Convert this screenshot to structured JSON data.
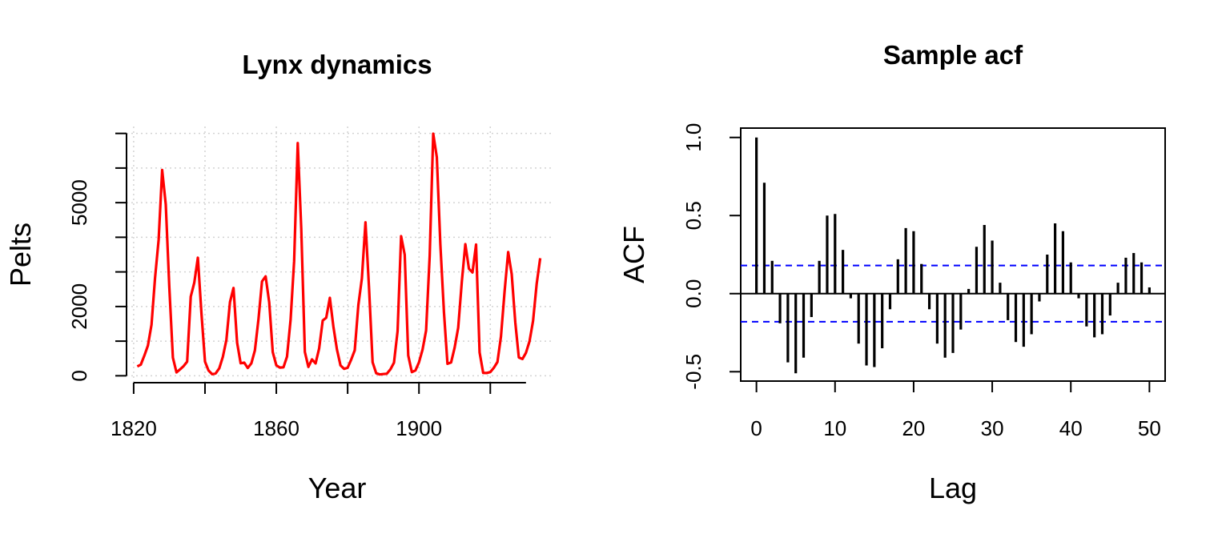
{
  "chart_data": [
    {
      "type": "line",
      "title": "Lynx dynamics",
      "xlabel": "Year",
      "ylabel": "Pelts",
      "xlim": [
        1818,
        1937
      ],
      "ylim": [
        -200,
        7200
      ],
      "xticks": [
        1820,
        1860,
        1900
      ],
      "yticks": [
        0,
        2000,
        5000
      ],
      "grid": true,
      "color": "#ff0000",
      "series": [
        {
          "x": [
            1821,
            1822,
            1823,
            1824,
            1825,
            1826,
            1827,
            1828,
            1829,
            1830,
            1831,
            1832,
            1833,
            1834,
            1835,
            1836,
            1837,
            1838,
            1839,
            1840,
            1841,
            1842,
            1843,
            1844,
            1845,
            1846,
            1847,
            1848,
            1849,
            1850,
            1851,
            1852,
            1853,
            1854,
            1855,
            1856,
            1857,
            1858,
            1859,
            1860,
            1861,
            1862,
            1863,
            1864,
            1865,
            1866,
            1867,
            1868,
            1869,
            1870,
            1871,
            1872,
            1873,
            1874,
            1875,
            1876,
            1877,
            1878,
            1879,
            1880,
            1881,
            1882,
            1883,
            1884,
            1885,
            1886,
            1887,
            1888,
            1889,
            1890,
            1891,
            1892,
            1893,
            1894,
            1895,
            1896,
            1897,
            1898,
            1899,
            1900,
            1901,
            1902,
            1903,
            1904,
            1905,
            1906,
            1907,
            1908,
            1909,
            1910,
            1911,
            1912,
            1913,
            1914,
            1915,
            1916,
            1917,
            1918,
            1919,
            1920,
            1921,
            1922,
            1923,
            1924,
            1925,
            1926,
            1927,
            1928,
            1929,
            1930,
            1931,
            1932,
            1933,
            1934
          ],
          "values": [
            269,
            321,
            585,
            871,
            1475,
            2821,
            3928,
            5943,
            4950,
            2577,
            523,
            98,
            184,
            279,
            409,
            2285,
            2685,
            3409,
            1824,
            409,
            151,
            45,
            68,
            213,
            546,
            1033,
            2129,
            2536,
            957,
            361,
            377,
            225,
            360,
            731,
            1638,
            2725,
            2871,
            2119,
            684,
            299,
            236,
            245,
            552,
            1623,
            3311,
            6721,
            4254,
            687,
            255,
            473,
            358,
            784,
            1594,
            1676,
            2251,
            1426,
            756,
            299,
            201,
            229,
            469,
            736,
            2042,
            2811,
            4431,
            2511,
            389,
            73,
            39,
            49,
            59,
            188,
            377,
            1292,
            4031,
            3495,
            587,
            105,
            153,
            387,
            758,
            1307,
            3465,
            6991,
            6313,
            3794,
            1836,
            345,
            382,
            808,
            1388,
            2713,
            3800,
            3091,
            2985,
            3790,
            674,
            81,
            80,
            108,
            229,
            399,
            1132,
            2432,
            3574,
            2935,
            1537,
            529,
            485,
            662,
            1000,
            1590,
            2657,
            3396
          ]
        }
      ]
    },
    {
      "type": "bar",
      "title": "Sample acf",
      "xlabel": "Lag",
      "ylabel": "ACF",
      "xlim": [
        -2,
        52
      ],
      "ylim": [
        -0.56,
        1.06
      ],
      "xticks": [
        0,
        10,
        20,
        30,
        40,
        50
      ],
      "yticks": [
        -0.5,
        0.0,
        0.5,
        1.0
      ],
      "ytick_labels": [
        "-0.5",
        "0.0",
        "0.5",
        "1.0"
      ],
      "confidence_bound": 0.18,
      "lags": [
        0,
        1,
        2,
        3,
        4,
        5,
        6,
        7,
        8,
        9,
        10,
        11,
        12,
        13,
        14,
        15,
        16,
        17,
        18,
        19,
        20,
        21,
        22,
        23,
        24,
        25,
        26,
        27,
        28,
        29,
        30,
        31,
        32,
        33,
        34,
        35,
        36,
        37,
        38,
        39,
        40,
        41,
        42,
        43,
        44,
        45,
        46,
        47,
        48,
        49,
        50
      ],
      "values": [
        1.0,
        0.71,
        0.21,
        -0.19,
        -0.44,
        -0.51,
        -0.41,
        -0.15,
        0.21,
        0.5,
        0.51,
        0.28,
        -0.03,
        -0.32,
        -0.46,
        -0.47,
        -0.35,
        -0.1,
        0.22,
        0.42,
        0.4,
        0.19,
        -0.1,
        -0.32,
        -0.41,
        -0.38,
        -0.23,
        0.03,
        0.3,
        0.44,
        0.34,
        0.07,
        -0.17,
        -0.31,
        -0.34,
        -0.26,
        -0.05,
        0.25,
        0.45,
        0.4,
        0.2,
        -0.03,
        -0.21,
        -0.28,
        -0.26,
        -0.14,
        0.07,
        0.23,
        0.26,
        0.2,
        0.04
      ]
    }
  ]
}
